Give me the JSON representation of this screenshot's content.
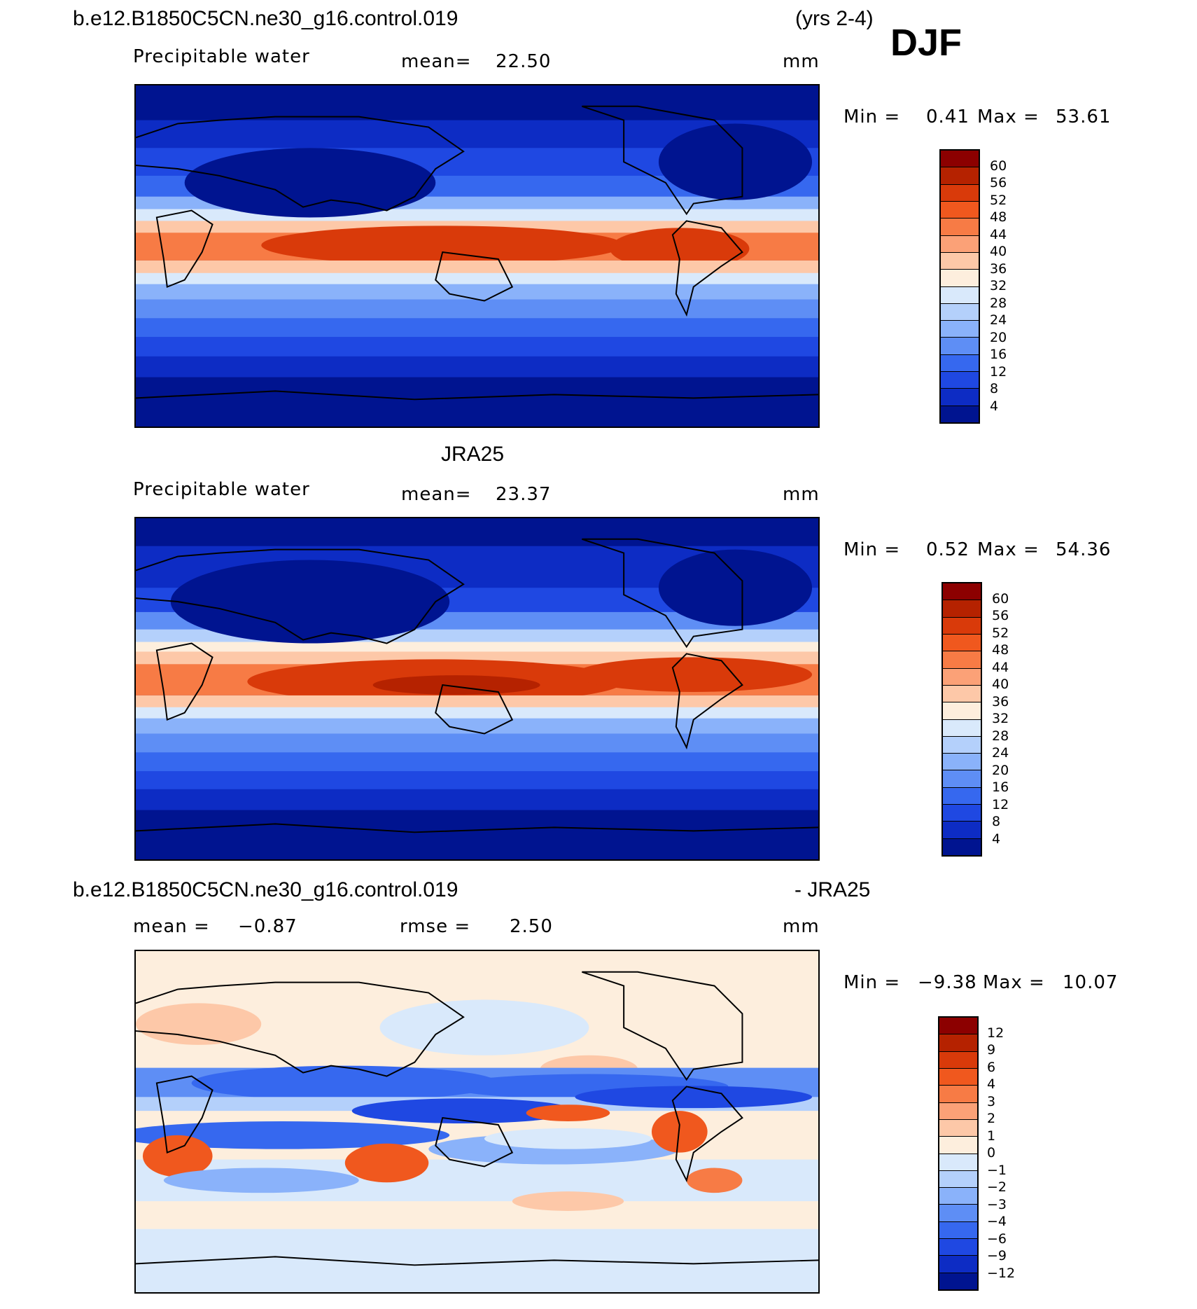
{
  "header": {
    "case_name": "b.e12.B1850C5CN.ne30_g16.control.019",
    "years": "(yrs 2-4)",
    "season": "DJF"
  },
  "panel1": {
    "variable": "Precipitable water",
    "mean_label": "mean=",
    "mean_value": "22.50",
    "units": "mm",
    "min_label": "Min =",
    "min_value": "0.41",
    "max_label": "Max =",
    "max_value": "53.61"
  },
  "panel2": {
    "title": "JRA25",
    "variable": "Precipitable water",
    "mean_label": "mean=",
    "mean_value": "23.37",
    "units": "mm",
    "min_label": "Min =",
    "min_value": "0.52",
    "max_label": "Max =",
    "max_value": "54.36"
  },
  "panel3": {
    "title_left": "b.e12.B1850C5CN.ne30_g16.control.019",
    "title_right": "- JRA25",
    "mean_label": "mean =",
    "mean_value": "−0.87",
    "rmse_label": "rmse =",
    "rmse_value": "2.50",
    "units": "mm",
    "min_label": "Min =",
    "min_value": "−9.38",
    "max_label": "Max =",
    "max_value": "10.07"
  },
  "colorbar_abs": {
    "labels": [
      "60",
      "56",
      "52",
      "48",
      "44",
      "40",
      "36",
      "32",
      "28",
      "24",
      "20",
      "16",
      "12",
      "8",
      "4"
    ],
    "colors": [
      "#8c0000",
      "#b52200",
      "#d93a0a",
      "#f0581e",
      "#f77b45",
      "#fba177",
      "#fdc8a8",
      "#fdeedd",
      "#d9e9fb",
      "#b4d0fb",
      "#8ab2fa",
      "#5e8ef5",
      "#3668ef",
      "#1f48e2",
      "#0d2cc4",
      "#001490"
    ]
  },
  "colorbar_diff": {
    "labels": [
      "12",
      "9",
      "6",
      "4",
      "3",
      "2",
      "1",
      "0",
      "−1",
      "−2",
      "−3",
      "−4",
      "−6",
      "−9",
      "−12"
    ],
    "colors": [
      "#8c0000",
      "#b52200",
      "#d93a0a",
      "#f0581e",
      "#f77b45",
      "#fba177",
      "#fdc8a8",
      "#fdeedd",
      "#d9e9fb",
      "#b4d0fb",
      "#8ab2fa",
      "#5e8ef5",
      "#3668ef",
      "#1f48e2",
      "#0d2cc4",
      "#001490"
    ]
  }
}
